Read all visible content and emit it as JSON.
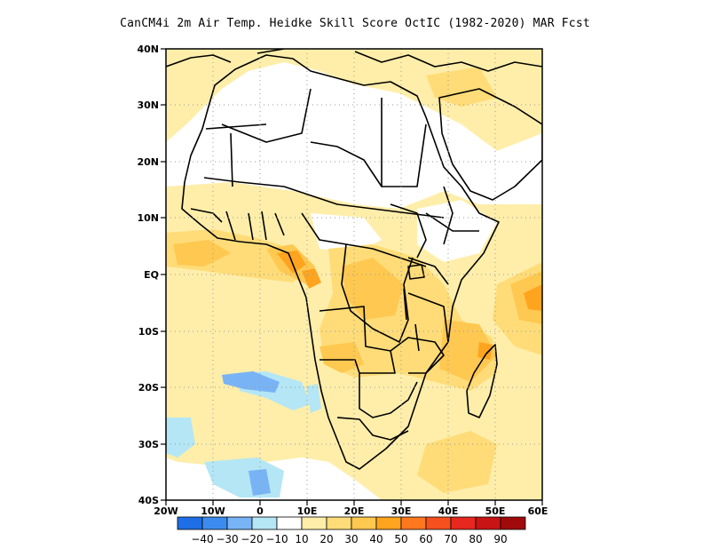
{
  "title": "CanCM4i  2m Air Temp. Heidke Skill Score OctIC (1982-2020) MAR Fcst",
  "map": {
    "projection": "lat-lon",
    "lon_range": [
      -20,
      60
    ],
    "lat_range": [
      -40,
      40
    ],
    "lat_ticks": [
      "40N",
      "30N",
      "20N",
      "10N",
      "EQ",
      "10S",
      "20S",
      "30S",
      "40S"
    ],
    "lon_ticks": [
      "20W",
      "10W",
      "0",
      "10E",
      "20E",
      "30E",
      "40E",
      "50E",
      "60E"
    ],
    "grid": "dotted, 10 degree",
    "layers": [
      "country-boundaries",
      "coastline",
      "skill-score-shading"
    ]
  },
  "colorbar": {
    "labels": [
      "-40",
      "-30",
      "-20",
      "-10",
      "10",
      "20",
      "30",
      "40",
      "50",
      "60",
      "70",
      "80",
      "90"
    ],
    "colors": [
      "#1e6ee6",
      "#3c8cf0",
      "#78b4f5",
      "#b4e6f5",
      "#ffffff",
      "#ffeeaa",
      "#ffdc78",
      "#ffc850",
      "#ffa41e",
      "#ff781e",
      "#f5501e",
      "#e6281e",
      "#c81414",
      "#a00a0a"
    ]
  }
}
